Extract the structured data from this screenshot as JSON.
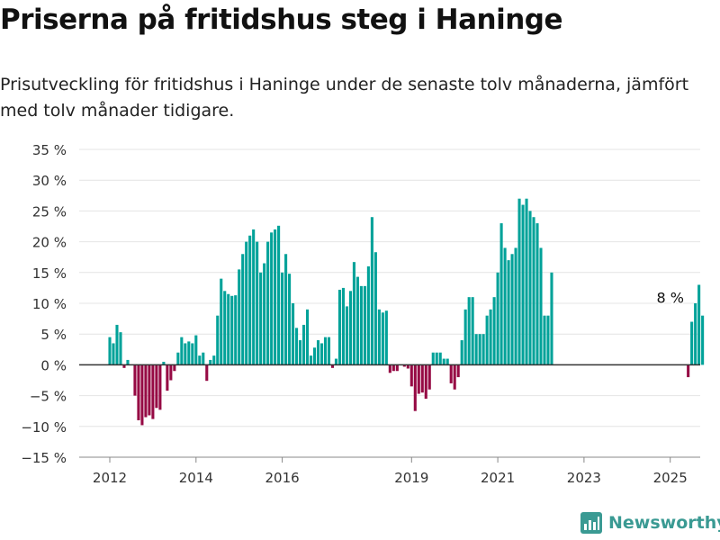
{
  "title": "Priserna på fritidshus steg i Haninge",
  "subtitle": "Prisutveckling för fritidshus i Haninge under de senaste tolv månaderna, jämfört med tolv månader tidigare.",
  "brand": "Newsworthy",
  "colors": {
    "positive": "#00a299",
    "negative": "#960a44",
    "grid": "#e4e4e4",
    "zero_line": "#333333",
    "brand": "#3a9a93"
  },
  "chart_data": {
    "type": "bar",
    "ylim": [
      -15,
      35
    ],
    "y_ticks": [
      35,
      30,
      25,
      20,
      15,
      10,
      5,
      0,
      -5,
      -10,
      -15
    ],
    "y_tick_labels": [
      "35 %",
      "30 %",
      "25 %",
      "20 %",
      "15 %",
      "10 %",
      "5 %",
      "0 %",
      "−5 %",
      "−10 %",
      "−15 %"
    ],
    "x_ticks": [
      2012,
      2014,
      2016,
      2019,
      2021,
      2023,
      2025
    ],
    "x_tick_labels": [
      "2012",
      "2014",
      "2016",
      "2019",
      "2021",
      "2023",
      "2025"
    ],
    "start": "2012-01",
    "end": "2025-01",
    "annotation": {
      "date": "2025-01",
      "value": 8,
      "label": "8 %"
    },
    "values": [
      4.5,
      3.5,
      6.5,
      5.3,
      -0.5,
      0.8,
      0,
      -5,
      -9,
      -9.8,
      -8.5,
      -8.2,
      -8.8,
      -7,
      -7.3,
      0.5,
      -4.2,
      -2.5,
      -1,
      2,
      4.5,
      3.5,
      3.8,
      3.5,
      4.8,
      1.5,
      2,
      -2.6,
      0.8,
      1.5,
      8,
      14,
      12,
      11.5,
      11.2,
      11.3,
      15.5,
      18,
      20,
      21,
      22,
      20,
      15,
      16.5,
      20,
      21.5,
      22,
      22.6,
      15,
      18,
      14.8,
      10,
      6,
      4,
      6.5,
      9,
      1.5,
      2.8,
      4,
      3.5,
      4.5,
      4.5,
      -0.5,
      1,
      12.2,
      12.5,
      9.5,
      12,
      16.7,
      14.3,
      12.8,
      12.8,
      16,
      24,
      18.3,
      9,
      8.5,
      8.8,
      -1.3,
      -1,
      -1,
      0,
      -0.3,
      -0.6,
      -3.5,
      -7.5,
      -4.7,
      -4.5,
      -5.5,
      -4,
      2,
      2,
      2,
      1,
      1,
      -3,
      -4,
      -2,
      4,
      9,
      11,
      11,
      5,
      5,
      5,
      8,
      9,
      11,
      15,
      23,
      19,
      17,
      18,
      19,
      27,
      26,
      27,
      25,
      24,
      23,
      19,
      8,
      8,
      15,
      null,
      null,
      null,
      null,
      null,
      null,
      null,
      null,
      null,
      null,
      null,
      null,
      null,
      null,
      null,
      null,
      null,
      null,
      null,
      null,
      null,
      null,
      null,
      null,
      null,
      null,
      null,
      null,
      null,
      null,
      null,
      null,
      null,
      null,
      null,
      null,
      null,
      -2,
      7,
      10,
      13,
      8
    ]
  }
}
